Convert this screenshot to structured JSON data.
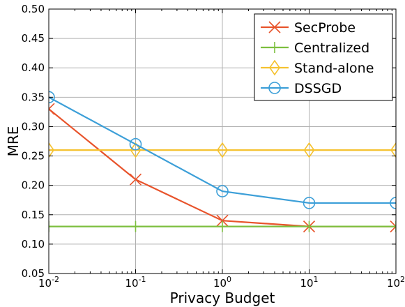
{
  "chart_data": {
    "type": "line",
    "xlabel": "Privacy Budget",
    "ylabel": "MRE",
    "x_scale": "log",
    "x": [
      0.01,
      0.1,
      1,
      10,
      100
    ],
    "x_tick_labels": [
      {
        "base": "10",
        "exp": "-2"
      },
      {
        "base": "10",
        "exp": "-1"
      },
      {
        "base": "10",
        "exp": "0"
      },
      {
        "base": "10",
        "exp": "1"
      },
      {
        "base": "10",
        "exp": "2"
      }
    ],
    "xlim": [
      0.01,
      100
    ],
    "ylim": [
      0.05,
      0.5
    ],
    "y_ticks": [
      "0.05",
      "0.10",
      "0.15",
      "0.20",
      "0.25",
      "0.30",
      "0.35",
      "0.40",
      "0.45",
      "0.50"
    ],
    "grid": true,
    "legend_position": "top-right",
    "series": [
      {
        "name": "SecProbe",
        "color": "#e8532b",
        "marker": "x",
        "values": [
          0.33,
          0.21,
          0.14,
          0.13,
          0.13
        ]
      },
      {
        "name": "Centralized",
        "color": "#7cbf3e",
        "marker": "vline",
        "values": [
          0.13,
          0.13,
          0.13,
          0.13,
          0.13
        ]
      },
      {
        "name": "Stand-alone",
        "color": "#f5c230",
        "marker": "diamond",
        "values": [
          0.26,
          0.26,
          0.26,
          0.26,
          0.26
        ]
      },
      {
        "name": "DSSGD",
        "color": "#3c9fd8",
        "marker": "circle",
        "values": [
          0.35,
          0.27,
          0.19,
          0.17,
          0.17
        ]
      }
    ]
  }
}
